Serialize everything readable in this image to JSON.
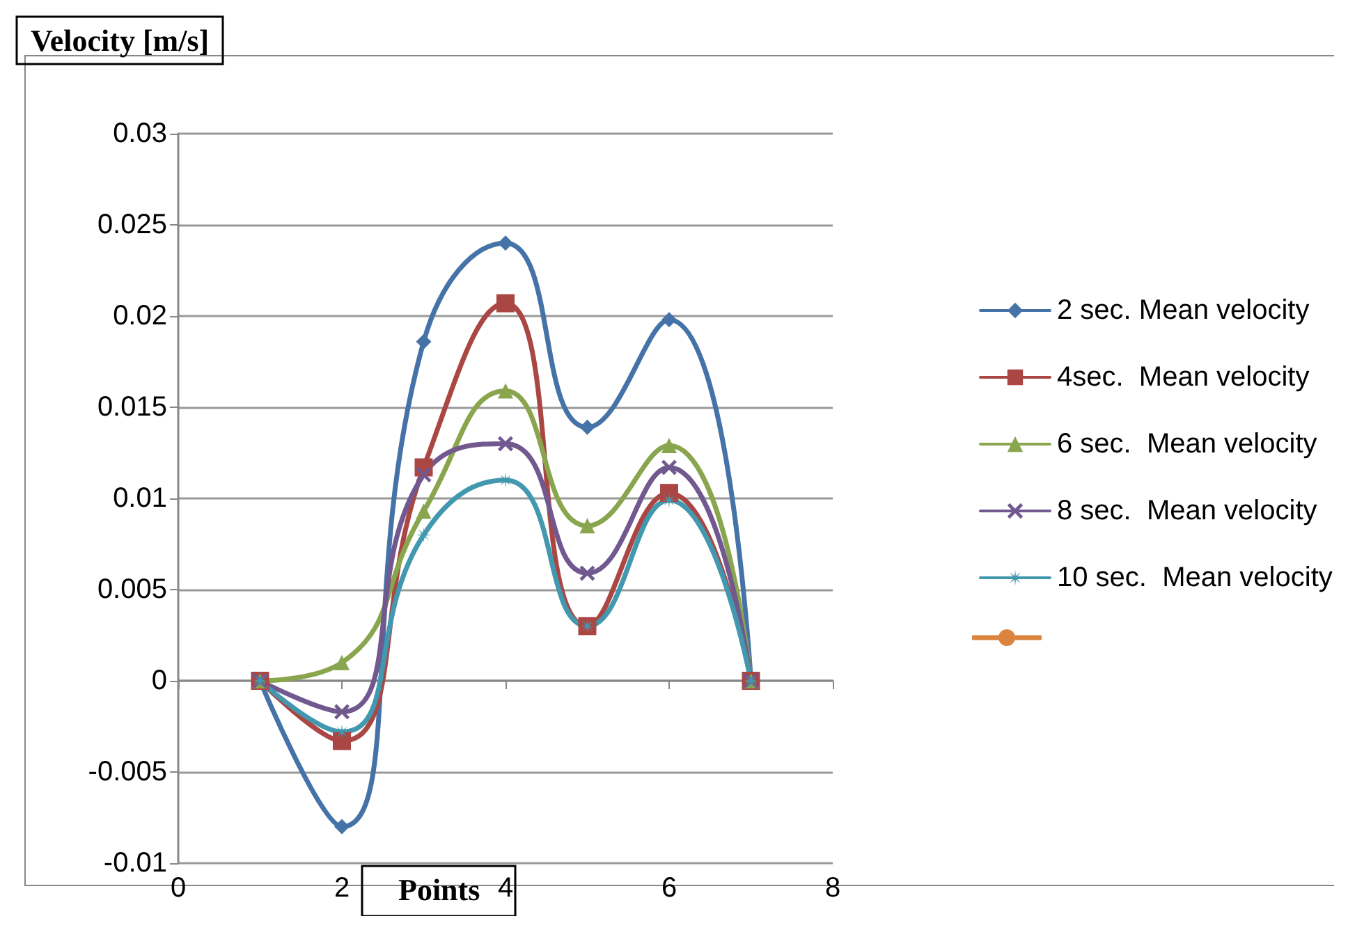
{
  "chart_data": {
    "type": "line",
    "xlabel": "Points",
    "ylabel": "Velocity [m/s]",
    "x": [
      1,
      2,
      3,
      4,
      5,
      6,
      7
    ],
    "series": [
      {
        "name": "2 sec. Mean velocity",
        "color": "#4573a7",
        "marker": "diamond",
        "values": [
          0,
          -0.008,
          0.0186,
          0.024,
          0.0139,
          0.0198,
          0
        ]
      },
      {
        "name": "4sec.  Mean velocity",
        "color": "#aa4643",
        "marker": "square",
        "values": [
          0,
          -0.0033,
          0.0117,
          0.0207,
          0.003,
          0.0103,
          0
        ]
      },
      {
        "name": "6 sec.  Mean velocity",
        "color": "#89a54e",
        "marker": "triangle",
        "values": [
          0,
          0.001,
          0.0093,
          0.0159,
          0.0085,
          0.0129,
          0
        ]
      },
      {
        "name": "8 sec.  Mean velocity",
        "color": "#71588f",
        "marker": "cross",
        "values": [
          0,
          -0.0017,
          0.0113,
          0.013,
          0.0059,
          0.0117,
          0
        ]
      },
      {
        "name": "10 sec.  Mean velocity",
        "color": "#4198af",
        "marker": "star",
        "values": [
          0,
          -0.0028,
          0.008,
          0.011,
          0.003,
          0.0099,
          0
        ]
      },
      {
        "color": "#db843d",
        "marker": "circle",
        "values": [
          null,
          null,
          null,
          null,
          null,
          null,
          null
        ]
      }
    ],
    "xlim": [
      0,
      8
    ],
    "xticks": [
      0,
      2,
      4,
      6,
      8
    ],
    "ylim": [
      -0.01,
      0.03
    ],
    "yticks": [
      -0.01,
      -0.005,
      0,
      0.005,
      0.01,
      0.015,
      0.02,
      0.025,
      0.03
    ],
    "grid": "y",
    "legend": "right",
    "line_style": "solid"
  }
}
